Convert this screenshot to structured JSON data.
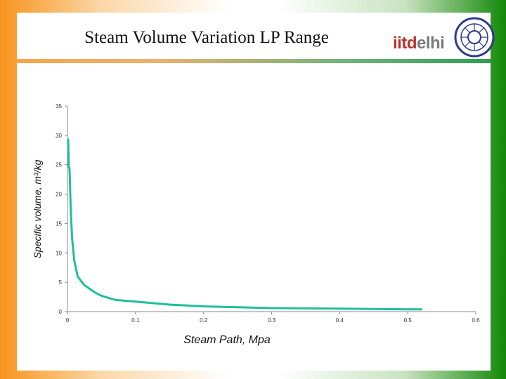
{
  "slide": {
    "title": "Steam  Volume Variation LP Range",
    "brand_part1": "iitd",
    "brand_part2": "elhi"
  },
  "colors": {
    "series": "#1fbf9a",
    "axis": "#888888",
    "brand_red": "#b8322a",
    "brand_gray": "#7a7a7a",
    "seal_blue": "#2e3a8c"
  },
  "chart_data": {
    "type": "line",
    "title": "",
    "xlabel": "Steam Path, Mpa",
    "ylabel": "Specific volume, m³/kg",
    "xlim": [
      0,
      0.6
    ],
    "ylim": [
      0,
      35
    ],
    "x_ticks": [
      "0",
      "0.1",
      "0.2",
      "0.3",
      "0.4",
      "0.5",
      "0.6"
    ],
    "y_ticks": [
      "0",
      "5",
      "10",
      "15",
      "20",
      "25",
      "30",
      "35"
    ],
    "grid": false,
    "legend": "none",
    "series": [
      {
        "x": [
          0.001,
          0.002,
          0.003,
          0.004,
          0.005,
          0.007,
          0.01,
          0.015,
          0.02,
          0.025,
          0.03,
          0.04,
          0.05,
          0.07,
          0.1,
          0.15,
          0.2,
          0.25,
          0.3,
          0.35,
          0.4,
          0.45,
          0.5,
          0.52
        ],
        "y": [
          29.3,
          24.7,
          24.4,
          20.5,
          16.7,
          12.2,
          8.7,
          6.0,
          5.2,
          4.5,
          4.1,
          3.3,
          2.7,
          2.0,
          1.7,
          1.2,
          0.9,
          0.75,
          0.6,
          0.55,
          0.5,
          0.45,
          0.4,
          0.4
        ]
      }
    ]
  }
}
